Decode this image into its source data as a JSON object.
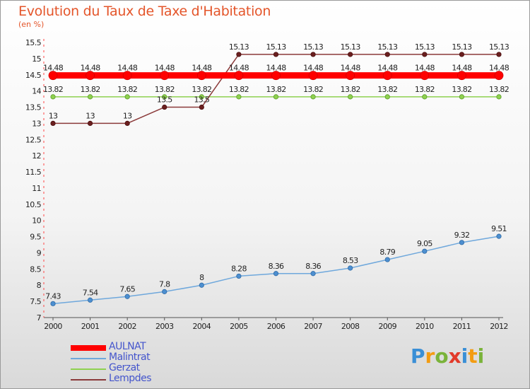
{
  "header": {
    "title": "Evolution du Taux de Taxe d'Habitation",
    "unit": "(en %)"
  },
  "chart_data": {
    "type": "line",
    "x": [
      "2000",
      "2001",
      "2002",
      "2003",
      "2004",
      "2005",
      "2006",
      "2007",
      "2008",
      "2009",
      "2010",
      "2011",
      "2012"
    ],
    "ylim": [
      7,
      15.5
    ],
    "yticks": [
      "7",
      "7.5",
      "8",
      "8.5",
      "9",
      "9.5",
      "10",
      "10.5",
      "11",
      "11.5",
      "12",
      "12.5",
      "13",
      "13.5",
      "14",
      "14.5",
      "15",
      "15.5"
    ],
    "grid": false,
    "legend_position": "bottom-left",
    "series": [
      {
        "name": "AULNAT",
        "color": "#ff0000",
        "values": [
          14.48,
          14.48,
          14.48,
          14.48,
          14.48,
          14.48,
          14.48,
          14.48,
          14.48,
          14.48,
          14.48,
          14.48,
          14.48
        ],
        "labels": [
          "14.48",
          "14.48",
          "14.48",
          "14.48",
          "14.48",
          "14.48",
          "14.48",
          "14.48",
          "14.48",
          "14.48",
          "14.48",
          "14.48",
          "14.48"
        ]
      },
      {
        "name": "Malintrat",
        "color": "#6fa8dc",
        "values": [
          7.43,
          7.54,
          7.65,
          7.8,
          8,
          8.28,
          8.36,
          8.36,
          8.53,
          8.79,
          9.05,
          9.32,
          9.51
        ],
        "labels": [
          "7.43",
          "7.54",
          "7.65",
          "7.8",
          "8",
          "8.28",
          "8.36",
          "8.36",
          "8.53",
          "8.79",
          "9.05",
          "9.32",
          "9.51"
        ]
      },
      {
        "name": "Gerzat",
        "color": "#8fd14f",
        "values": [
          13.82,
          13.82,
          13.82,
          13.82,
          13.82,
          13.82,
          13.82,
          13.82,
          13.82,
          13.82,
          13.82,
          13.82,
          13.82
        ],
        "labels": [
          "13.82",
          "13.82",
          "13.82",
          "13.82",
          "13.82",
          "13.82",
          "13.82",
          "13.82",
          "13.82",
          "13.82",
          "13.82",
          "13.82",
          "13.82"
        ]
      },
      {
        "name": "Lempdes",
        "color": "#8b3a3a",
        "values": [
          13,
          13,
          13,
          13.5,
          13.5,
          15.13,
          15.13,
          15.13,
          15.13,
          15.13,
          15.13,
          15.13,
          15.13
        ],
        "labels": [
          "13",
          "13",
          "13",
          "13.5",
          "13.5",
          "15.13",
          "15.13",
          "15.13",
          "15.13",
          "15.13",
          "15.13",
          "15.13",
          "15.13"
        ]
      }
    ]
  },
  "legend": {
    "items": [
      {
        "label": "AULNAT",
        "color": "#ff0000"
      },
      {
        "label": "Malintrat",
        "color": "#6fa8dc"
      },
      {
        "label": "Gerzat",
        "color": "#8fd14f"
      },
      {
        "label": "Lempdes",
        "color": "#8b3a3a"
      }
    ]
  },
  "logo": {
    "letters": [
      "P",
      "r",
      "o",
      "x",
      "i",
      "t",
      "i"
    ],
    "colors": [
      "#3a8fd6",
      "#f39c12",
      "#7ab33a",
      "#e23a2a",
      "#3a8fd6",
      "#f39c12",
      "#7ab33a"
    ]
  }
}
